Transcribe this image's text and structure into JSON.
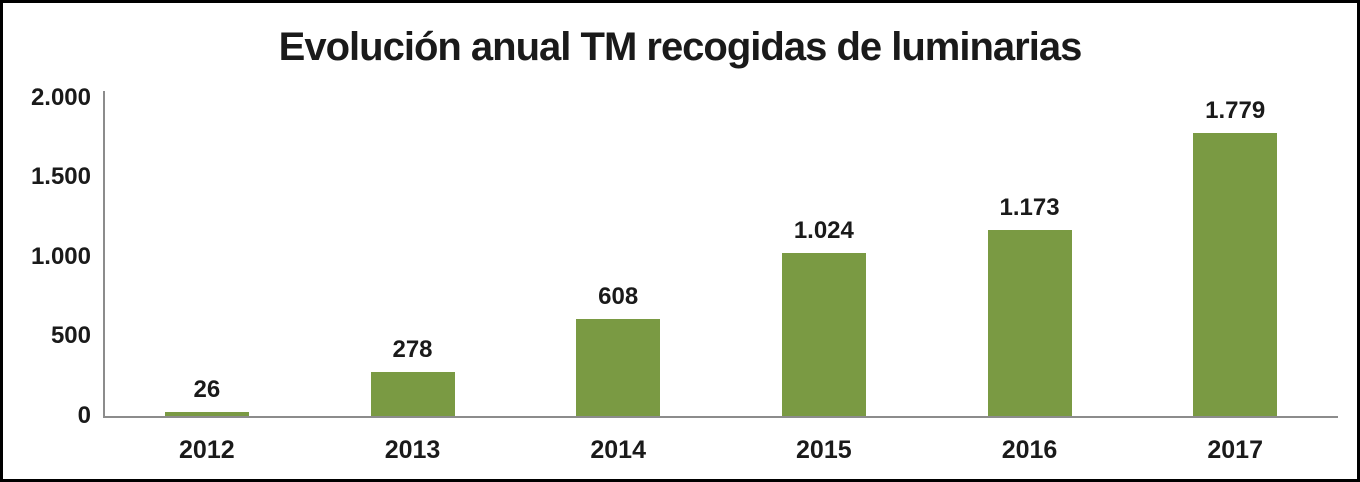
{
  "chart_data": {
    "type": "bar",
    "title": "Evolución anual TM recogidas de luminarias",
    "categories": [
      "2012",
      "2013",
      "2014",
      "2015",
      "2016",
      "2017"
    ],
    "values": [
      26,
      278,
      608,
      1024,
      1173,
      1779
    ],
    "value_labels": [
      "26",
      "278",
      "608",
      "1.024",
      "1.173",
      "1.779"
    ],
    "yticks": [
      2000,
      1500,
      1000,
      500,
      0
    ],
    "ytick_labels": [
      "2.000",
      "1.500",
      "1.000",
      "500",
      "0"
    ],
    "ylim": [
      0,
      2000
    ],
    "xlabel": "",
    "ylabel": "",
    "legend_position": "none",
    "grid": false,
    "bar_color": "#7A9A43",
    "axis_color": "#8C8C8C",
    "text_color": "#1a1a1a",
    "frame_border_color": "#000000",
    "background_color": "#ffffff"
  }
}
